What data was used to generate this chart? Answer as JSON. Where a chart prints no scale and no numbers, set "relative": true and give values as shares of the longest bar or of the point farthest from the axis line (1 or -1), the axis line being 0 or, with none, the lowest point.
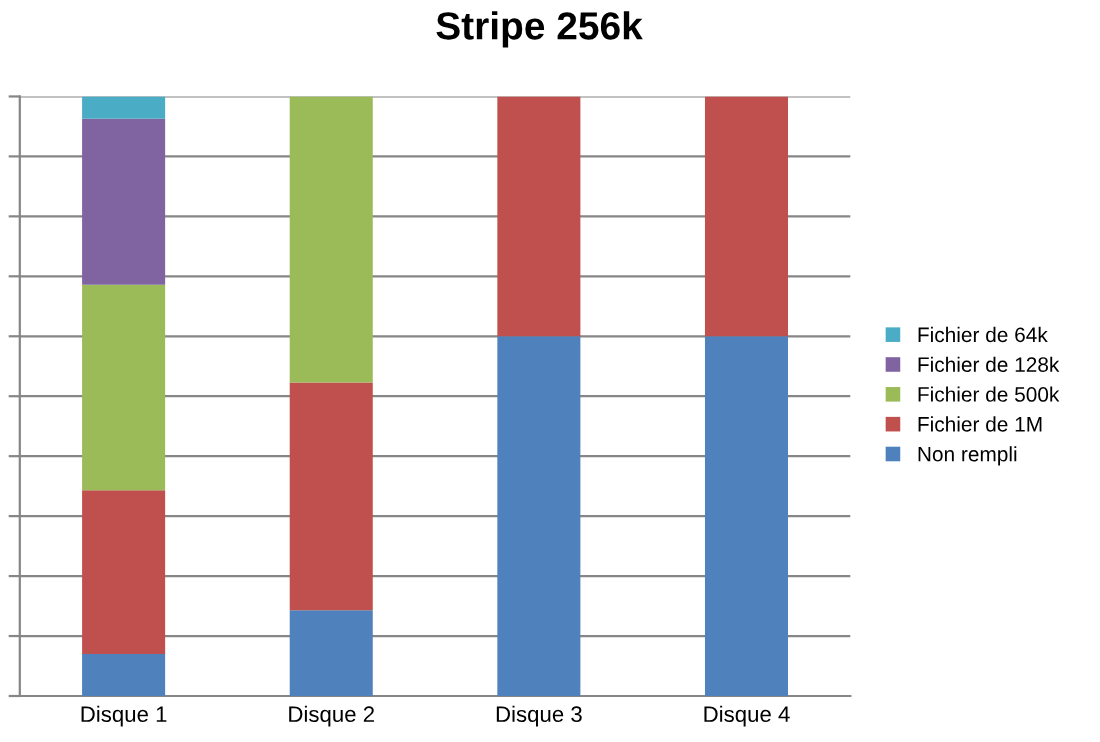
{
  "chart_data": {
    "type": "bar",
    "title": "Stripe 256k",
    "categories": [
      "Disque 1",
      "Disque 2",
      "Disque 3",
      "Disque 4"
    ],
    "stacked": true,
    "relative": true,
    "grid": "y",
    "legend": "right",
    "series": [
      {
        "name": "Non rempli",
        "color": "#4f81bd",
        "values": [
          0.07,
          0.143,
          0.6,
          0.6
        ]
      },
      {
        "name": "Fichier de 1M",
        "color": "#c0504d",
        "values": [
          0.273,
          0.38,
          0.4,
          0.4
        ]
      },
      {
        "name": "Fichier de 500k",
        "color": "#9bbb59",
        "values": [
          0.343,
          0.477,
          0,
          0
        ]
      },
      {
        "name": "Fichier de 128k",
        "color": "#8064a2",
        "values": [
          0.277,
          0,
          0,
          0
        ]
      },
      {
        "name": "Fichier de 64k",
        "color": "#4bacc6",
        "values": [
          0.037,
          0,
          0,
          0
        ]
      }
    ]
  }
}
